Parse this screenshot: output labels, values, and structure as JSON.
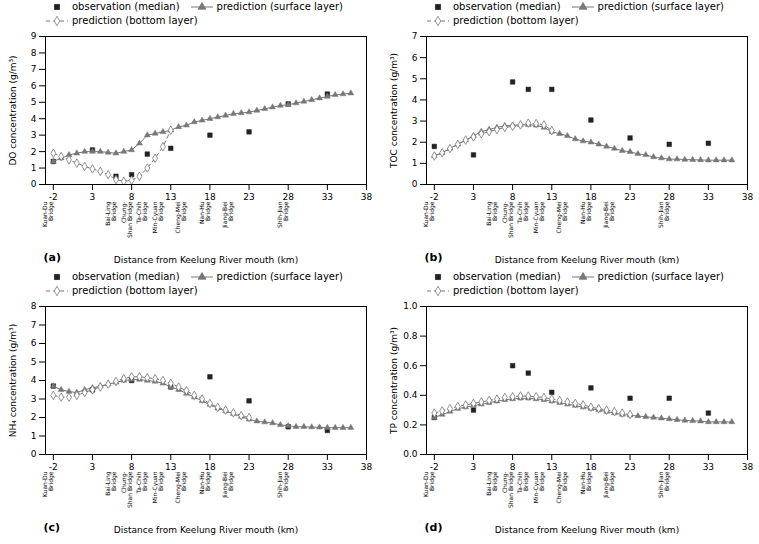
{
  "chart_data": [
    {
      "type": "line",
      "title": "(a)",
      "xlabel": "Distance from Keelung River mouth (km)",
      "ylabel": "DO concentration (g/m³)",
      "xlim": [
        -3,
        38
      ],
      "xticks": [
        -2,
        3,
        8,
        13,
        18,
        23,
        28,
        33,
        38
      ],
      "ylim": [
        0,
        9
      ],
      "yticks": [
        0,
        1,
        2,
        3,
        4,
        5,
        6,
        7,
        8,
        9
      ],
      "grid": false,
      "legend": "upper left",
      "annotations": [
        {
          "text": "Kuan-Du\nBridge",
          "x": -2
        },
        {
          "text": "Bai-Ling\nBridge",
          "x": 6
        },
        {
          "text": "Chung-\nShan Bridge",
          "x": 8
        },
        {
          "text": "Ta-Chih\nBridge",
          "x": 10
        },
        {
          "text": "Min-Cyuan\nBridge",
          "x": 12
        },
        {
          "text": "Cheng-Mei\nBridge",
          "x": 15
        },
        {
          "text": "Nan-Hu\nBridge",
          "x": 18
        },
        {
          "text": "Jiang-Bei\nBridge",
          "x": 21
        },
        {
          "text": "Shih-Jian\nBridge",
          "x": 28
        }
      ],
      "series": [
        {
          "name": "observation (median)",
          "type": "scatter",
          "color": "#222222",
          "marker": "square",
          "x": [
            -2,
            3,
            6,
            8,
            10,
            13,
            18,
            23,
            28,
            33
          ],
          "values": [
            1.4,
            2.1,
            0.5,
            0.6,
            1.85,
            2.2,
            3.0,
            3.2,
            4.9,
            5.5
          ]
        },
        {
          "name": "prediction (surface layer)",
          "type": "line",
          "color": "#777777",
          "marker": "triangle",
          "line_style": "solid",
          "x": [
            -2,
            -1,
            0,
            1,
            2,
            3,
            4,
            5,
            6,
            7,
            8,
            9,
            10,
            11,
            12,
            13,
            14,
            15,
            16,
            17,
            18,
            19,
            20,
            21,
            22,
            23,
            24,
            25,
            26,
            27,
            28,
            29,
            30,
            31,
            32,
            33,
            34,
            35,
            36
          ],
          "values": [
            1.4,
            1.6,
            1.8,
            1.9,
            2.0,
            2.0,
            2.0,
            1.95,
            1.9,
            2.0,
            2.1,
            2.5,
            3.0,
            3.1,
            3.2,
            3.3,
            3.5,
            3.6,
            3.8,
            3.9,
            4.0,
            4.1,
            4.2,
            4.3,
            4.35,
            4.4,
            4.5,
            4.6,
            4.7,
            4.8,
            4.85,
            4.95,
            5.05,
            5.15,
            5.25,
            5.35,
            5.45,
            5.5,
            5.55
          ]
        },
        {
          "name": "prediction (bottom layer)",
          "type": "line",
          "color": "#777777",
          "marker": "diamond",
          "line_style": "dashed",
          "x": [
            -2,
            -1,
            0,
            1,
            2,
            3,
            4,
            5,
            6,
            7,
            8,
            9,
            10,
            11,
            12,
            13
          ],
          "values": [
            1.9,
            1.7,
            1.5,
            1.3,
            1.1,
            0.95,
            0.8,
            0.6,
            0.3,
            0.2,
            0.25,
            0.5,
            1.0,
            1.6,
            2.3,
            3.3
          ]
        }
      ]
    },
    {
      "type": "line",
      "title": "(b)",
      "xlabel": "Distance from Keelung River mouth (km)",
      "ylabel": "TOC concentration (g/m³)",
      "xlim": [
        -3,
        38
      ],
      "xticks": [
        -2,
        3,
        8,
        13,
        18,
        23,
        28,
        33,
        38
      ],
      "ylim": [
        0,
        7
      ],
      "yticks": [
        0,
        1,
        2,
        3,
        4,
        5,
        6,
        7
      ],
      "grid": false,
      "legend": "upper left",
      "annotations": [
        {
          "text": "Kuan-Du\nBridge",
          "x": -2
        },
        {
          "text": "Bai-Ling\nBridge",
          "x": 6
        },
        {
          "text": "Chung-\nShan Bridge",
          "x": 8
        },
        {
          "text": "Ta-Chih\nBridge",
          "x": 10
        },
        {
          "text": "Min-Cyuan\nBridge",
          "x": 12
        },
        {
          "text": "Cheng-Mei\nBridge",
          "x": 15
        },
        {
          "text": "Nan-Hu\nBridge",
          "x": 18
        },
        {
          "text": "Jiang-Bei\nBridge",
          "x": 21
        },
        {
          "text": "Shih-Jian\nBridge",
          "x": 28
        }
      ],
      "series": [
        {
          "name": "observation (median)",
          "type": "scatter",
          "color": "#222222",
          "marker": "square",
          "x": [
            -2,
            3,
            8,
            10,
            13,
            18,
            23,
            28,
            33
          ],
          "values": [
            1.8,
            1.4,
            4.85,
            4.5,
            4.5,
            3.05,
            2.2,
            1.9,
            1.95
          ]
        },
        {
          "name": "prediction (surface layer)",
          "type": "line",
          "color": "#777777",
          "marker": "triangle",
          "line_style": "solid",
          "x": [
            -2,
            -1,
            0,
            1,
            2,
            3,
            4,
            5,
            6,
            7,
            8,
            9,
            10,
            11,
            12,
            13,
            14,
            15,
            16,
            17,
            18,
            19,
            20,
            21,
            22,
            23,
            24,
            25,
            26,
            27,
            28,
            29,
            30,
            31,
            32,
            33,
            34,
            35,
            36
          ],
          "values": [
            1.35,
            1.5,
            1.7,
            1.9,
            2.1,
            2.3,
            2.5,
            2.6,
            2.7,
            2.78,
            2.8,
            2.82,
            2.83,
            2.8,
            2.7,
            2.5,
            2.4,
            2.3,
            2.15,
            2.05,
            2.0,
            1.9,
            1.8,
            1.7,
            1.6,
            1.55,
            1.45,
            1.4,
            1.3,
            1.25,
            1.2,
            1.2,
            1.18,
            1.17,
            1.16,
            1.15,
            1.15,
            1.15,
            1.15
          ]
        },
        {
          "name": "prediction (bottom layer)",
          "type": "line",
          "color": "#777777",
          "marker": "diamond",
          "line_style": "dashed",
          "x": [
            -2,
            -1,
            0,
            1,
            2,
            3,
            4,
            5,
            6,
            7,
            8,
            9,
            10,
            11,
            12,
            13
          ],
          "values": [
            1.35,
            1.5,
            1.7,
            1.9,
            2.1,
            2.25,
            2.4,
            2.5,
            2.6,
            2.7,
            2.75,
            2.82,
            2.9,
            2.88,
            2.82,
            2.55
          ]
        }
      ]
    },
    {
      "type": "line",
      "title": "(c)",
      "xlabel": "Distance from Keelung River mouth (km)",
      "ylabel": "NH₄ concentration (g/m³)",
      "xlim": [
        -3,
        38
      ],
      "xticks": [
        -2,
        3,
        8,
        13,
        18,
        23,
        28,
        33,
        38
      ],
      "ylim": [
        0,
        8
      ],
      "yticks": [
        0,
        1,
        2,
        3,
        4,
        5,
        6,
        7,
        8
      ],
      "grid": false,
      "legend": "upper left",
      "annotations": [
        {
          "text": "Kuan-Du\nBridge",
          "x": -2
        },
        {
          "text": "Bai-Ling\nBridge",
          "x": 6
        },
        {
          "text": "Chung-\nShan Bridge",
          "x": 8
        },
        {
          "text": "Ta-Chih\nBridge",
          "x": 10
        },
        {
          "text": "Min-Cyuan\nBridge",
          "x": 12
        },
        {
          "text": "Cheng-Mei\nBridge",
          "x": 15
        },
        {
          "text": "Nan-Hu\nBridge",
          "x": 18
        },
        {
          "text": "Jiang-Bei\nBridge",
          "x": 21
        },
        {
          "text": "Shih-Jian\nBridge",
          "x": 28
        }
      ],
      "series": [
        {
          "name": "observation (median)",
          "type": "scatter",
          "color": "#222222",
          "marker": "square",
          "x": [
            -2,
            3,
            8,
            13,
            18,
            23,
            28,
            33
          ],
          "values": [
            3.7,
            3.5,
            4.0,
            3.65,
            4.2,
            2.9,
            1.5,
            1.3
          ]
        },
        {
          "name": "prediction (surface layer)",
          "type": "line",
          "color": "#777777",
          "marker": "triangle",
          "line_style": "solid",
          "x": [
            -2,
            -1,
            0,
            1,
            2,
            3,
            4,
            5,
            6,
            7,
            8,
            9,
            10,
            11,
            12,
            13,
            14,
            15,
            16,
            17,
            18,
            19,
            20,
            21,
            22,
            23,
            24,
            25,
            26,
            27,
            28,
            29,
            30,
            31,
            32,
            33,
            34,
            35,
            36
          ],
          "values": [
            3.7,
            3.5,
            3.4,
            3.35,
            3.5,
            3.6,
            3.7,
            3.8,
            3.9,
            4.0,
            4.05,
            4.05,
            4.0,
            3.95,
            3.85,
            3.65,
            3.5,
            3.3,
            3.1,
            2.9,
            2.7,
            2.5,
            2.35,
            2.2,
            2.05,
            1.9,
            1.8,
            1.75,
            1.7,
            1.6,
            1.55,
            1.5,
            1.5,
            1.48,
            1.47,
            1.45,
            1.45,
            1.45,
            1.45
          ]
        },
        {
          "name": "prediction (bottom layer)",
          "type": "line",
          "color": "#777777",
          "marker": "diamond",
          "line_style": "dashed",
          "x": [
            -2,
            -1,
            0,
            1,
            2,
            3,
            4,
            5,
            6,
            7,
            8,
            9,
            10,
            11,
            12,
            13,
            14,
            15,
            16,
            17,
            18,
            19,
            20,
            21,
            22,
            23
          ],
          "values": [
            3.2,
            3.1,
            3.1,
            3.2,
            3.35,
            3.5,
            3.65,
            3.8,
            3.95,
            4.1,
            4.2,
            4.2,
            4.15,
            4.1,
            4.0,
            3.85,
            3.65,
            3.45,
            3.2,
            3.0,
            2.75,
            2.55,
            2.4,
            2.25,
            2.1,
            2.0
          ]
        }
      ]
    },
    {
      "type": "line",
      "title": "(d)",
      "xlabel": "Distance from Keelung River mouth (km)",
      "ylabel": "TP concentration (g/m³)",
      "xlim": [
        -3,
        38
      ],
      "xticks": [
        -2,
        3,
        8,
        13,
        18,
        23,
        28,
        33,
        38
      ],
      "ylim": [
        0,
        1.0
      ],
      "yticks": [
        {
          "value": 0,
          "label": "0.0"
        },
        0.2,
        0.4,
        0.6,
        0.8,
        {
          "value": 1,
          "label": "1.0"
        }
      ],
      "grid": false,
      "legend": "upper left",
      "annotations": [
        {
          "text": "Kuan-Du\nBridge",
          "x": -2
        },
        {
          "text": "Bai-Ling\nBridge",
          "x": 6
        },
        {
          "text": "Chung-\nShan Bridge",
          "x": 8
        },
        {
          "text": "Ta-Chih\nBridge",
          "x": 10
        },
        {
          "text": "Min-Cyuan\nBridge",
          "x": 12
        },
        {
          "text": "Cheng-Mei\nBridge",
          "x": 15
        },
        {
          "text": "Nan-Hu\nBridge",
          "x": 18
        },
        {
          "text": "Jiang-Bei\nBridge",
          "x": 21
        },
        {
          "text": "Shih-Jian\nBridge",
          "x": 28
        }
      ],
      "series": [
        {
          "name": "observation (median)",
          "type": "scatter",
          "color": "#222222",
          "marker": "square",
          "x": [
            -2,
            3,
            8,
            10,
            13,
            18,
            23,
            28,
            33
          ],
          "values": [
            0.25,
            0.3,
            0.6,
            0.55,
            0.42,
            0.45,
            0.38,
            0.38,
            0.28
          ]
        },
        {
          "name": "prediction (surface layer)",
          "type": "line",
          "color": "#777777",
          "marker": "triangle",
          "line_style": "solid",
          "x": [
            -2,
            -1,
            0,
            1,
            2,
            3,
            4,
            5,
            6,
            7,
            8,
            9,
            10,
            11,
            12,
            13,
            14,
            15,
            16,
            17,
            18,
            19,
            20,
            21,
            22,
            23,
            24,
            25,
            26,
            27,
            28,
            29,
            30,
            31,
            32,
            33,
            34,
            35,
            36
          ],
          "values": [
            0.25,
            0.27,
            0.29,
            0.31,
            0.32,
            0.33,
            0.34,
            0.35,
            0.36,
            0.37,
            0.375,
            0.38,
            0.38,
            0.375,
            0.37,
            0.36,
            0.35,
            0.34,
            0.33,
            0.32,
            0.31,
            0.3,
            0.29,
            0.28,
            0.27,
            0.265,
            0.26,
            0.255,
            0.25,
            0.245,
            0.24,
            0.235,
            0.23,
            0.228,
            0.225,
            0.22,
            0.22,
            0.22,
            0.22
          ]
        },
        {
          "name": "prediction (bottom layer)",
          "type": "line",
          "color": "#777777",
          "marker": "diamond",
          "line_style": "dashed",
          "x": [
            -2,
            -1,
            0,
            1,
            2,
            3,
            4,
            5,
            6,
            7,
            8,
            9,
            10,
            11,
            12,
            13,
            14,
            15,
            16,
            17,
            18,
            19,
            20,
            21,
            22,
            23
          ],
          "values": [
            0.28,
            0.295,
            0.31,
            0.325,
            0.335,
            0.345,
            0.355,
            0.365,
            0.375,
            0.385,
            0.39,
            0.395,
            0.395,
            0.39,
            0.385,
            0.375,
            0.365,
            0.355,
            0.345,
            0.335,
            0.32,
            0.31,
            0.3,
            0.29,
            0.28,
            0.27
          ]
        }
      ]
    }
  ]
}
